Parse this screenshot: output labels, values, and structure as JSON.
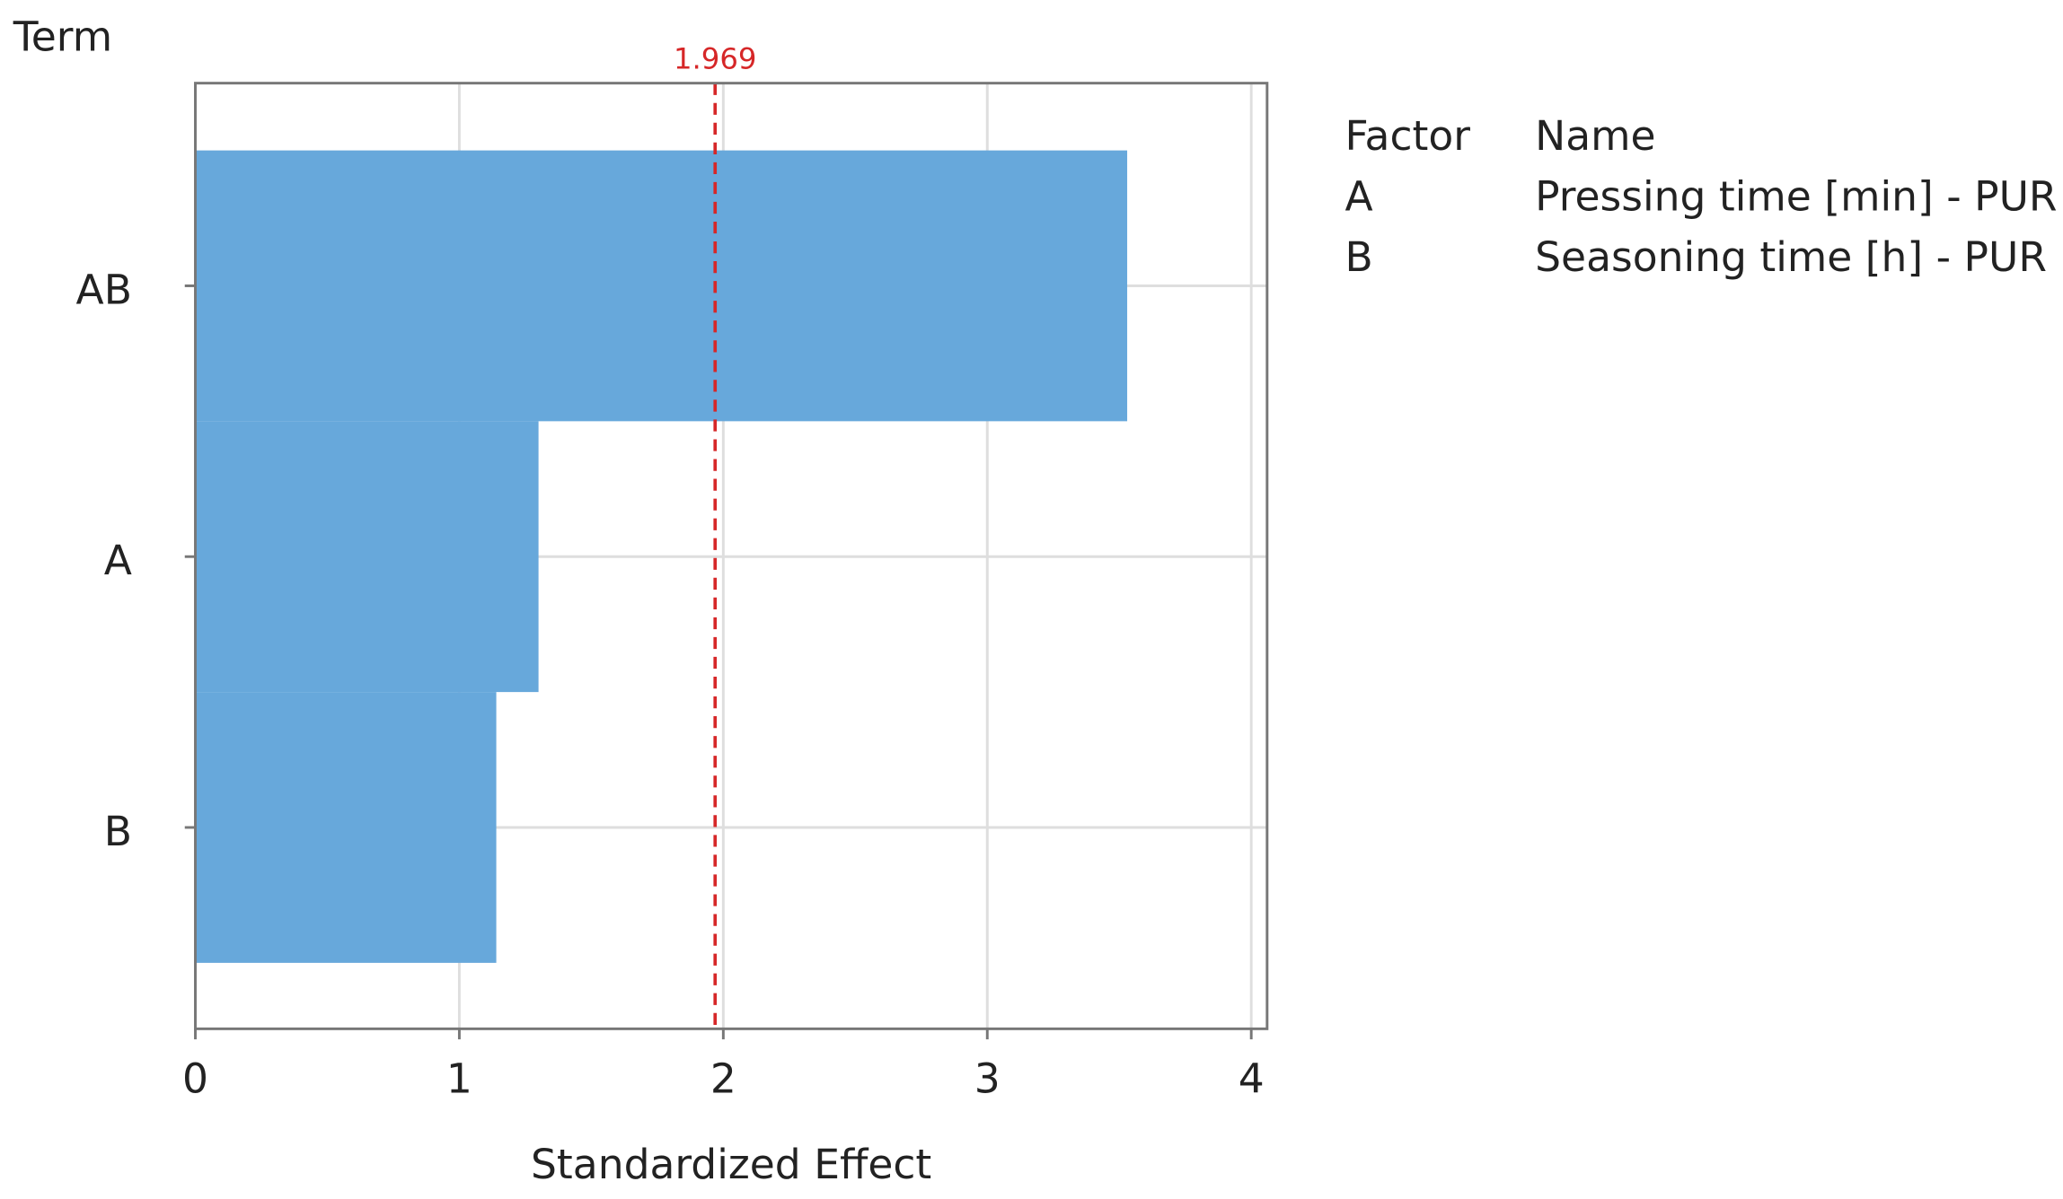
{
  "chart_data": {
    "type": "bar",
    "orientation": "horizontal",
    "y_label": "Term",
    "x_label": "Standardized Effect",
    "categories": [
      "AB",
      "A",
      "B"
    ],
    "values": [
      3.53,
      1.3,
      1.14
    ],
    "color": "#67a8db",
    "xlim": [
      0,
      4.06
    ],
    "xticks": [
      0,
      1,
      2,
      3,
      4
    ],
    "grid": true,
    "reference_line": {
      "value": 1.969,
      "color": "#d62728"
    },
    "factor_table": {
      "headers": [
        "Factor",
        "Name"
      ],
      "rows": [
        [
          "A",
          "Pressing time [min] - PUR"
        ],
        [
          "B",
          "Seasoning time [h] - PUR"
        ]
      ]
    }
  }
}
